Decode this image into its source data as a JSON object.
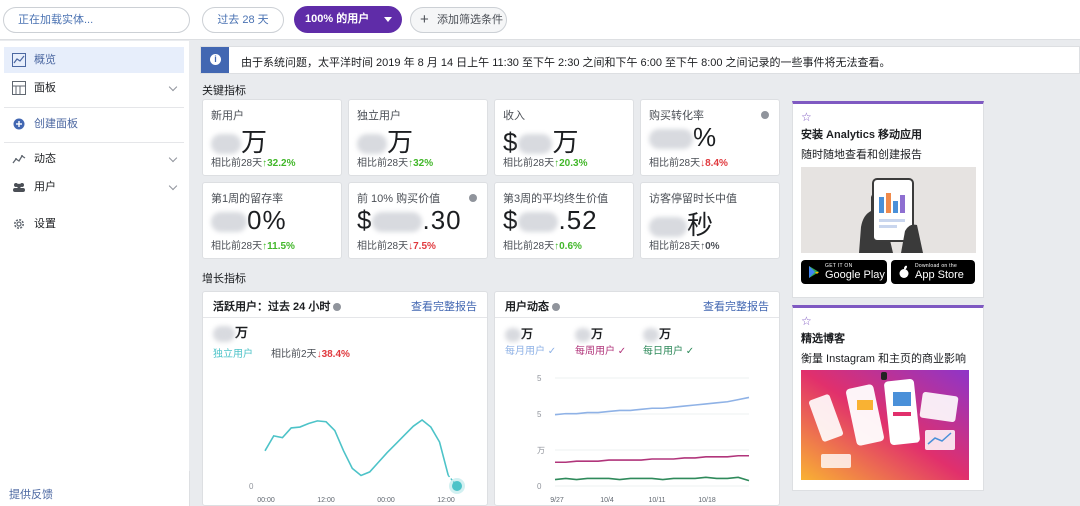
{
  "topbar": {
    "entity_placeholder": "正在加载实体...",
    "date_range": "过去 28 天",
    "segment": "100% 的用户",
    "add_filter": "添加筛选条件"
  },
  "sidebar": {
    "items": [
      {
        "label": "概览",
        "icon": "overview-chart-icon"
      },
      {
        "label": "面板",
        "icon": "dashboard-grid-icon"
      },
      {
        "label": "创建面板",
        "icon": "plus-circle-icon"
      },
      {
        "label": "动态",
        "icon": "activity-line-icon"
      },
      {
        "label": "用户",
        "icon": "users-icon"
      },
      {
        "label": "设置",
        "icon": "gear-icon"
      }
    ],
    "feedback": "提供反馈"
  },
  "notice": {
    "text": "由于系统问题，太平洋时间 2019 年 8 月 14 日上午 11:30 至下午 2:30 之间和下午 6:00 至下午 8:00 之间记录的一些事件将无法查看。"
  },
  "sections": {
    "key_metrics": "关键指标",
    "growth_metrics": "增长指标"
  },
  "metrics": [
    {
      "label": "新用户",
      "prefix": "",
      "suffix": "万",
      "cmp_label": "相比前28天",
      "arrow": "↑",
      "change": "32.2%",
      "trend": "up"
    },
    {
      "label": "独立用户",
      "prefix": "",
      "suffix": "万",
      "cmp_label": "相比前28天",
      "arrow": "↑",
      "change": "32%",
      "trend": "up"
    },
    {
      "label": "收入",
      "prefix": "$",
      "suffix": "万",
      "cmp_label": "相比前28天",
      "arrow": "↑",
      "change": "20.3%",
      "trend": "up"
    },
    {
      "label": "购买转化率",
      "prefix": "",
      "suffix": "%",
      "cmp_label": "相比前28天",
      "arrow": "↓",
      "change": "8.4%",
      "trend": "down",
      "info": true
    },
    {
      "label": "第1周的留存率",
      "prefix": "",
      "suffix": "0%",
      "cmp_label": "相比前28天",
      "arrow": "↑",
      "change": "11.5%",
      "trend": "up"
    },
    {
      "label": "前 10% 购买价值",
      "prefix": "$",
      "suffix": ".30",
      "cmp_label": "相比前28天",
      "arrow": "↓",
      "change": "7.5%",
      "trend": "down",
      "info": true
    },
    {
      "label": "第3周的平均终生价值",
      "prefix": "$",
      "suffix": ".52",
      "cmp_label": "相比前28天",
      "arrow": "↑",
      "change": "0.6%",
      "trend": "up"
    },
    {
      "label": "访客停留时长中值",
      "prefix": "",
      "suffix": "秒",
      "cmp_label": "相比前28天",
      "arrow": "↑",
      "change": "0%",
      "trend": "flat"
    }
  ],
  "active_users_card": {
    "title": "活跃用户：过去 24 小时",
    "link": "查看完整报告",
    "value_suffix": "万",
    "series_label": "独立用户",
    "cmp_label": "相比前2天",
    "arrow": "↓",
    "change": "38.4%"
  },
  "user_activity_card": {
    "title": "用户动态",
    "link": "查看完整报告",
    "legend": [
      {
        "name": "每月用户",
        "value_suffix": "万",
        "color": "#8fb2e6",
        "check": "✓"
      },
      {
        "name": "每周用户",
        "value_suffix": "万",
        "color": "#b1357b",
        "check": "✓"
      },
      {
        "name": "每日用户",
        "value_suffix": "万",
        "color": "#2f8a5b",
        "check": "✓"
      }
    ]
  },
  "chart_data": [
    {
      "type": "line",
      "x_ticks": [
        "00:00",
        "12:00",
        "00:00",
        "12:00"
      ],
      "y_ticks": [
        "0"
      ],
      "series": [
        {
          "name": "独立用户",
          "color": "#4dc3c8",
          "values": [
            0.4,
            0.57,
            0.55,
            0.66,
            0.67,
            0.71,
            0.74,
            0.73,
            0.63,
            0.4,
            0.2,
            0.12,
            0.16,
            0.27,
            0.38,
            0.48,
            0.58,
            0.68,
            0.75,
            0.67,
            0.5,
            0.12,
            0.0
          ]
        }
      ],
      "last_point_dashed": true
    },
    {
      "type": "line",
      "x_ticks": [
        "9/27",
        "10/4",
        "10/11",
        "10/18"
      ],
      "y_ticks": [
        "0",
        "万",
        "5",
        "5"
      ],
      "series": [
        {
          "name": "每月用户",
          "color": "#8fb2e6",
          "values": [
            0.66,
            0.67,
            0.67,
            0.68,
            0.68,
            0.69,
            0.7,
            0.7,
            0.71,
            0.72,
            0.72,
            0.73,
            0.74,
            0.75,
            0.76,
            0.77,
            0.78,
            0.8,
            0.82
          ]
        },
        {
          "name": "每周用户",
          "color": "#b1357b",
          "values": [
            0.22,
            0.22,
            0.23,
            0.23,
            0.23,
            0.24,
            0.24,
            0.24,
            0.24,
            0.25,
            0.25,
            0.25,
            0.26,
            0.26,
            0.27,
            0.27,
            0.27,
            0.28,
            0.28
          ]
        },
        {
          "name": "每日用户",
          "color": "#2f8a5b",
          "values": [
            0.06,
            0.07,
            0.06,
            0.07,
            0.07,
            0.07,
            0.06,
            0.07,
            0.07,
            0.07,
            0.06,
            0.07,
            0.07,
            0.07,
            0.08,
            0.07,
            0.07,
            0.08,
            0.05
          ]
        }
      ]
    }
  ],
  "promo_app": {
    "title": "安装 Analytics 移动应用",
    "subtitle": "随时随地查看和创建报告",
    "google_small": "GET IT ON",
    "google_big": "Google Play",
    "apple_small": "Download on the",
    "apple_big": "App Store"
  },
  "promo_blog": {
    "title": "精选博客",
    "subtitle": "衡量 Instagram 和主页的商业影响"
  }
}
